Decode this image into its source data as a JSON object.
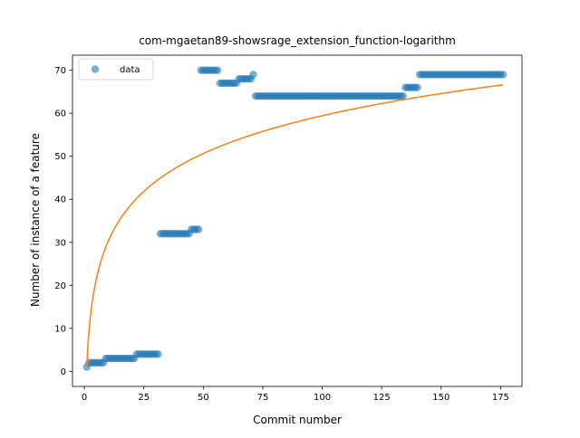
{
  "chart_data": {
    "type": "scatter",
    "title": "com-mgaetan89-showsrage_extension_function-logarithm",
    "xlabel": "Commit number",
    "ylabel": "Number of instance of a feature",
    "xlim": [
      -5,
      184
    ],
    "ylim": [
      -3.5,
      73.5
    ],
    "xticks": [
      0,
      25,
      50,
      75,
      100,
      125,
      150,
      175
    ],
    "yticks": [
      0,
      10,
      20,
      30,
      40,
      50,
      60,
      70
    ],
    "grid": false,
    "legend": {
      "position": "upper-left",
      "entries": [
        "data"
      ]
    },
    "colors": {
      "data": "#1f77b4",
      "fit": "#ff7f0e"
    },
    "series": [
      {
        "name": "data",
        "kind": "points",
        "segments": [
          {
            "x_start": 1,
            "x_end": 1,
            "y": 1
          },
          {
            "x_start": 2,
            "x_end": 8,
            "y": 2
          },
          {
            "x_start": 9,
            "x_end": 21,
            "y": 3
          },
          {
            "x_start": 22,
            "x_end": 31,
            "y": 4
          },
          {
            "x_start": 32,
            "x_end": 44,
            "y": 32
          },
          {
            "x_start": 45,
            "x_end": 48,
            "y": 33
          },
          {
            "x_start": 49,
            "x_end": 56,
            "y": 70
          },
          {
            "x_start": 57,
            "x_end": 64,
            "y": 67
          },
          {
            "x_start": 65,
            "x_end": 70,
            "y": 68
          },
          {
            "x_start": 71,
            "x_end": 71,
            "y": 69
          },
          {
            "x_start": 72,
            "x_end": 134,
            "y": 64
          },
          {
            "x_start": 135,
            "x_end": 140,
            "y": 66
          },
          {
            "x_start": 141,
            "x_end": 176,
            "y": 69
          }
        ]
      },
      {
        "kind": "fit-line",
        "model": "logarithmic",
        "a": 1.0,
        "b": 12.69,
        "x_range": [
          1,
          176
        ]
      }
    ]
  }
}
